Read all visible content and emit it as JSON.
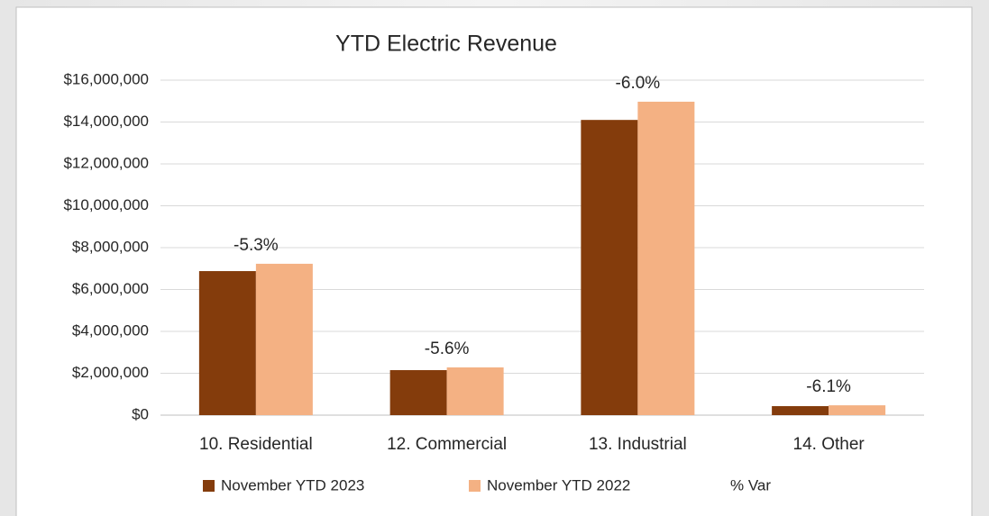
{
  "chart_data": {
    "type": "bar",
    "title": "YTD Electric Revenue",
    "categories": [
      "10. Residential",
      "12. Commercial",
      "13. Industrial",
      "14. Other"
    ],
    "series": [
      {
        "name": "November YTD 2023",
        "color": "#843c0c",
        "values": [
          6880000,
          2150000,
          14100000,
          430000
        ]
      },
      {
        "name": "November YTD 2022",
        "color": "#f4b183",
        "values": [
          7230000,
          2280000,
          14970000,
          470000
        ]
      },
      {
        "name": "% Var",
        "values": [
          -5.3,
          -5.6,
          -6.0,
          -6.1
        ],
        "value_labels": [
          "-5.3%",
          "-5.6%",
          "-6.0%",
          "-6.1%"
        ]
      }
    ],
    "ylim": [
      0,
      16000000
    ],
    "yticks": [
      {
        "value": 0,
        "label": "$0"
      },
      {
        "value": 2000000,
        "label": "$2,000,000"
      },
      {
        "value": 4000000,
        "label": "$4,000,000"
      },
      {
        "value": 6000000,
        "label": "$6,000,000"
      },
      {
        "value": 8000000,
        "label": "$8,000,000"
      },
      {
        "value": 10000000,
        "label": "$10,000,000"
      },
      {
        "value": 12000000,
        "label": "$12,000,000"
      },
      {
        "value": 14000000,
        "label": "$14,000,000"
      },
      {
        "value": 16000000,
        "label": "$16,000,000"
      }
    ],
    "grid": true,
    "legend": "bottom"
  }
}
